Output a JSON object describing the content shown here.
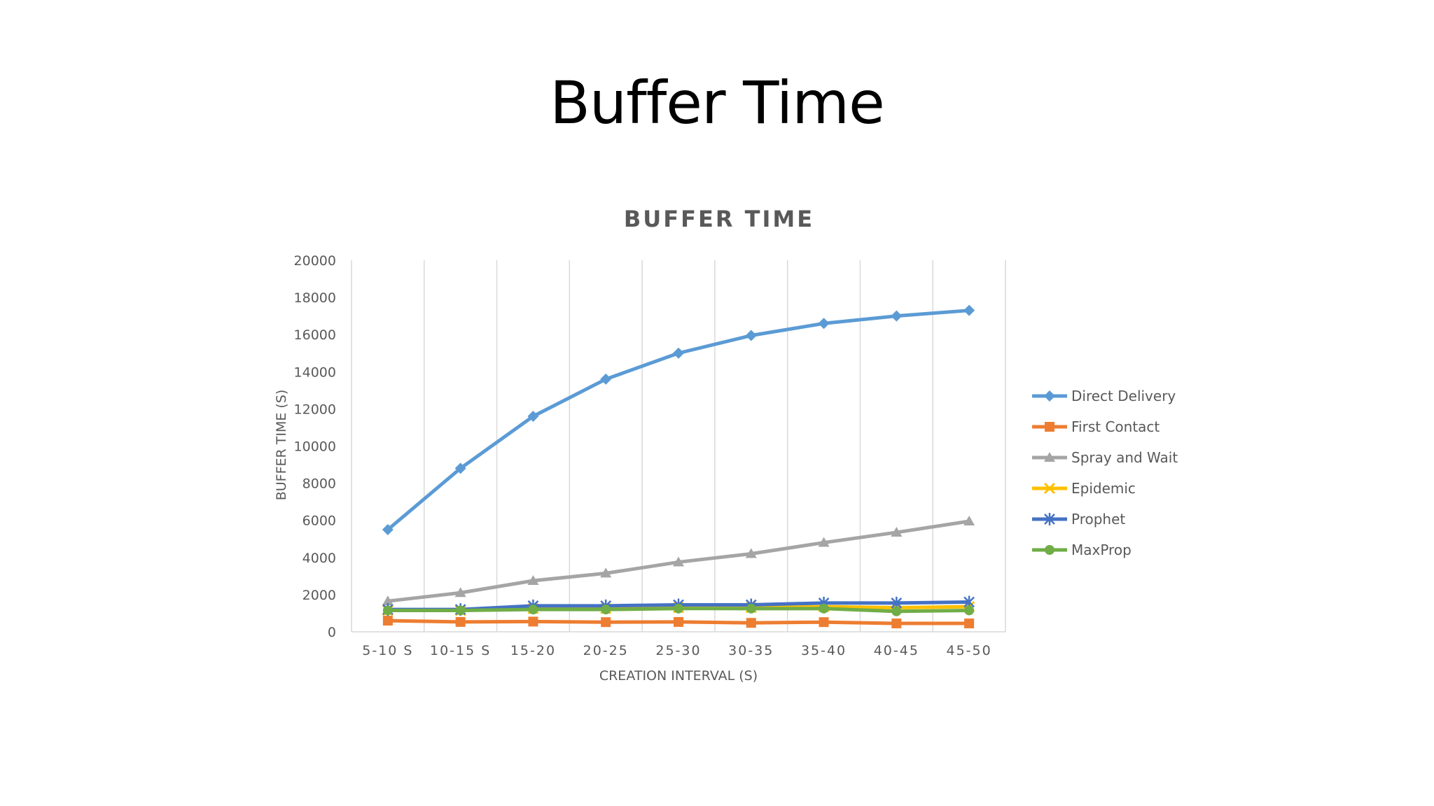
{
  "slide": {
    "title": "Buffer Time"
  },
  "chart_data": {
    "type": "line",
    "title": "BUFFER TIME",
    "xlabel": "CREATION INTERVAL (S)",
    "ylabel": "BUFFER TIME (S)",
    "ylim": [
      0,
      20000
    ],
    "yticks": [
      0,
      2000,
      4000,
      6000,
      8000,
      10000,
      12000,
      14000,
      16000,
      18000,
      20000
    ],
    "grid": "vertical",
    "legend_position": "right",
    "categories": [
      "5-10 S",
      "10-15 S",
      "15-20",
      "20-25",
      "25-30",
      "30-35",
      "35-40",
      "40-45",
      "45-50"
    ],
    "series": [
      {
        "name": "Direct Delivery",
        "color": "#5B9BD5",
        "marker": "diamond",
        "values": [
          5500,
          8800,
          11600,
          13600,
          15000,
          15950,
          16600,
          17000,
          17300
        ]
      },
      {
        "name": "First Contact",
        "color": "#ED7D31",
        "marker": "square",
        "values": [
          600,
          530,
          550,
          520,
          530,
          480,
          520,
          450,
          450
        ]
      },
      {
        "name": "Spray and Wait",
        "color": "#A5A5A5",
        "marker": "triangle",
        "values": [
          1650,
          2100,
          2750,
          3150,
          3750,
          4200,
          4800,
          5350,
          5950
        ]
      },
      {
        "name": "Epidemic",
        "color": "#FFC000",
        "marker": "x",
        "values": [
          1150,
          1150,
          1250,
          1250,
          1300,
          1300,
          1350,
          1300,
          1350
        ]
      },
      {
        "name": "Prophet",
        "color": "#4472C4",
        "marker": "star",
        "values": [
          1200,
          1200,
          1400,
          1400,
          1450,
          1450,
          1550,
          1550,
          1600
        ]
      },
      {
        "name": "MaxProp",
        "color": "#70AD47",
        "marker": "circle",
        "values": [
          1150,
          1150,
          1200,
          1200,
          1250,
          1250,
          1250,
          1100,
          1150
        ]
      }
    ]
  }
}
